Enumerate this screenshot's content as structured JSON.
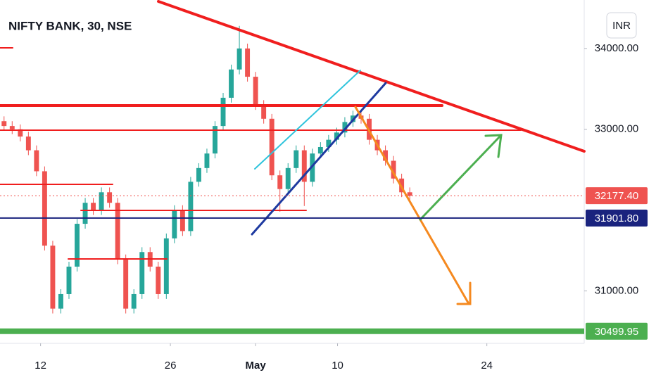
{
  "chart_data": {
    "type": "candlestick",
    "title": "NIFTY BANK, 30, NSE",
    "currency": "INR",
    "up_color": "#26a69a",
    "down_color": "#ef5350",
    "candles": [
      [
        33100,
        33160,
        32980,
        33040
      ],
      [
        33040,
        33100,
        32940,
        33000
      ],
      [
        33000,
        33060,
        32850,
        32910
      ],
      [
        32910,
        32970,
        32680,
        32740
      ],
      [
        32740,
        32800,
        32420,
        32480
      ],
      [
        32480,
        32540,
        31500,
        31560
      ],
      [
        31560,
        31620,
        30720,
        30780
      ],
      [
        30780,
        31020,
        30720,
        30960
      ],
      [
        30960,
        31360,
        30900,
        31300
      ],
      [
        31300,
        31890,
        31240,
        31830
      ],
      [
        31830,
        32150,
        31770,
        32090
      ],
      [
        32090,
        32150,
        31940,
        32000
      ],
      [
        32000,
        32280,
        31940,
        32220
      ],
      [
        32220,
        32280,
        32030,
        32090
      ],
      [
        32090,
        32150,
        31330,
        31390
      ],
      [
        31390,
        31450,
        30720,
        30780
      ],
      [
        30780,
        31020,
        30720,
        30960
      ],
      [
        30960,
        31540,
        30900,
        31480
      ],
      [
        31480,
        31540,
        31240,
        31300
      ],
      [
        31300,
        31360,
        30900,
        30960
      ],
      [
        30960,
        31710,
        30900,
        31650
      ],
      [
        31650,
        32060,
        31590,
        32000
      ],
      [
        32000,
        32060,
        31680,
        31740
      ],
      [
        31740,
        32410,
        31680,
        32350
      ],
      [
        32350,
        32580,
        32290,
        32520
      ],
      [
        32520,
        32760,
        32460,
        32700
      ],
      [
        32700,
        33100,
        32640,
        33040
      ],
      [
        33040,
        33450,
        32980,
        33390
      ],
      [
        33390,
        33800,
        33330,
        33740
      ],
      [
        33740,
        34280,
        33680,
        34000
      ],
      [
        34000,
        34060,
        33590,
        33650
      ],
      [
        33650,
        33710,
        33240,
        33300
      ],
      [
        33300,
        33360,
        33070,
        33130
      ],
      [
        33130,
        33190,
        32370,
        32430
      ],
      [
        32430,
        32490,
        31980,
        32260
      ],
      [
        32260,
        32580,
        32200,
        32520
      ],
      [
        32520,
        32800,
        32460,
        32740
      ],
      [
        32740,
        32800,
        32050,
        32350
      ],
      [
        32350,
        32760,
        32290,
        32700
      ],
      [
        32700,
        32840,
        32640,
        32780
      ],
      [
        32780,
        32930,
        32720,
        32870
      ],
      [
        32870,
        33020,
        32810,
        32960
      ],
      [
        32960,
        33150,
        32900,
        33090
      ],
      [
        33090,
        33230,
        33030,
        33170
      ],
      [
        33170,
        33230,
        33070,
        33130
      ],
      [
        33130,
        33190,
        32810,
        32870
      ],
      [
        32870,
        32930,
        32680,
        32740
      ],
      [
        32740,
        32800,
        32550,
        32610
      ],
      [
        32610,
        32670,
        32330,
        32390
      ],
      [
        32390,
        32450,
        32160,
        32220
      ],
      [
        32220,
        32280,
        32117.4,
        32177.4
      ]
    ],
    "xlim": [
      0,
      72
    ],
    "xticks": [
      {
        "value": 5,
        "label": "12"
      },
      {
        "value": 21,
        "label": "26"
      },
      {
        "value": 31.5,
        "label": "May"
      },
      {
        "value": 41.6,
        "label": "10"
      },
      {
        "value": 60,
        "label": "24"
      }
    ],
    "ylim": [
      30350,
      34600
    ],
    "yticks": [
      {
        "value": 34000,
        "label": "34000.00"
      },
      {
        "value": 33000,
        "label": "33000.00"
      },
      {
        "value": 31000,
        "label": "31000.00"
      }
    ],
    "price_labels": [
      {
        "value": 32177.4,
        "label": "32177.40",
        "color": "#ef5350"
      },
      {
        "value": 31901.8,
        "label": "31901.80",
        "color": "#1a237e"
      },
      {
        "value": 30499.95,
        "label": "30499.95",
        "color": "#4caf50"
      }
    ]
  }
}
